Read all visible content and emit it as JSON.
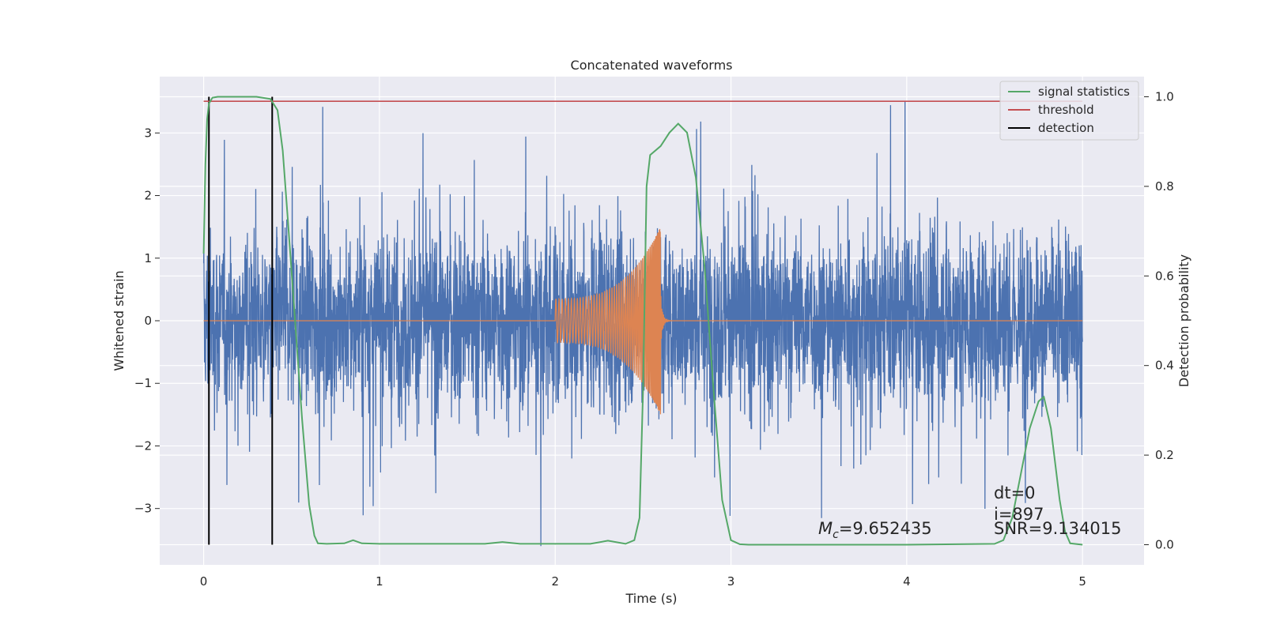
{
  "chart_data": {
    "type": "line",
    "title": "Concatenated waveforms",
    "xlabel": "Time (s)",
    "ylabel": "Whitened strain",
    "y2label": "Detection probability",
    "xlim": [
      -0.25,
      5.35
    ],
    "ylim": [
      -3.9,
      3.9
    ],
    "y2lim": [
      -0.045,
      1.045
    ],
    "x_ticks": [
      0,
      1,
      2,
      3,
      4,
      5
    ],
    "y_ticks": [
      -3,
      -2,
      -1,
      0,
      1,
      2,
      3
    ],
    "y2_ticks": [
      0.0,
      0.2,
      0.4,
      0.6,
      0.8,
      1.0
    ],
    "x_tick_labels": [
      "0",
      "1",
      "2",
      "3",
      "4",
      "5"
    ],
    "y_tick_labels": [
      "−3",
      "−2",
      "−1",
      "0",
      "1",
      "2",
      "3"
    ],
    "y2_tick_labels": [
      "0.0",
      "0.2",
      "0.4",
      "0.6",
      "0.8",
      "1.0"
    ],
    "grid": true,
    "legend_position": "top-right",
    "legend": [
      {
        "label": "signal statistics",
        "color": "#55a868"
      },
      {
        "label": "threshold",
        "color": "#c44e52"
      },
      {
        "label": "detection",
        "color": "#000000"
      }
    ],
    "colors": {
      "noise": "#4c72b0",
      "injection": "#dd8452",
      "signal_statistics": "#55a868",
      "threshold": "#c44e52",
      "detection": "#000000",
      "axes_bg": "#eaeaf2",
      "grid": "#ffffff"
    },
    "series": [
      {
        "name": "signal statistics",
        "axis": "right",
        "x": [
          0,
          0.01,
          0.02,
          0.03,
          0.05,
          0.08,
          0.12,
          0.2,
          0.3,
          0.38,
          0.42,
          0.45,
          0.48,
          0.52,
          0.56,
          0.6,
          0.63,
          0.65,
          0.7,
          0.8,
          0.85,
          0.9,
          1.0,
          1.3,
          1.6,
          1.7,
          1.8,
          2.0,
          2.2,
          2.3,
          2.4,
          2.45,
          2.48,
          2.5,
          2.52,
          2.54,
          2.6,
          2.65,
          2.7,
          2.75,
          2.8,
          2.85,
          2.9,
          2.95,
          3.0,
          3.05,
          3.1,
          3.5,
          4.0,
          4.5,
          4.55,
          4.6,
          4.65,
          4.7,
          4.75,
          4.78,
          4.82,
          4.87,
          4.9,
          4.93,
          5.0
        ],
        "y": [
          0.65,
          0.85,
          0.95,
          0.985,
          0.998,
          1.0,
          1.0,
          1.0,
          1.0,
          0.995,
          0.97,
          0.88,
          0.72,
          0.5,
          0.28,
          0.09,
          0.02,
          0.003,
          0.002,
          0.003,
          0.01,
          0.003,
          0.002,
          0.002,
          0.002,
          0.006,
          0.002,
          0.002,
          0.002,
          0.009,
          0.002,
          0.01,
          0.06,
          0.35,
          0.8,
          0.87,
          0.89,
          0.92,
          0.94,
          0.92,
          0.82,
          0.62,
          0.35,
          0.1,
          0.01,
          0.001,
          0.0,
          0.0,
          0.0,
          0.002,
          0.01,
          0.06,
          0.16,
          0.26,
          0.32,
          0.33,
          0.26,
          0.1,
          0.03,
          0.003,
          0.0
        ]
      },
      {
        "name": "threshold",
        "axis": "right",
        "x": [
          0,
          5
        ],
        "y": [
          0.99,
          0.99
        ]
      }
    ],
    "detections": [
      0.03,
      0.39
    ],
    "noise_strain": {
      "x_range": [
        0,
        5
      ],
      "typical_amplitude": 1.3,
      "extreme_range": [
        -3.6,
        3.5
      ]
    },
    "injected_chirp": {
      "x_range": [
        2.0,
        2.6
      ],
      "start_amplitude": 0.35,
      "peak_amplitude": 1.5,
      "peak_time": 2.6
    },
    "annotations": {
      "mc_symbol": "M",
      "mc_subscript": "c",
      "mc_value": "=9.652435",
      "dt": "dt=0",
      "i": "i=897",
      "snr": "SNR=9.134015"
    }
  }
}
